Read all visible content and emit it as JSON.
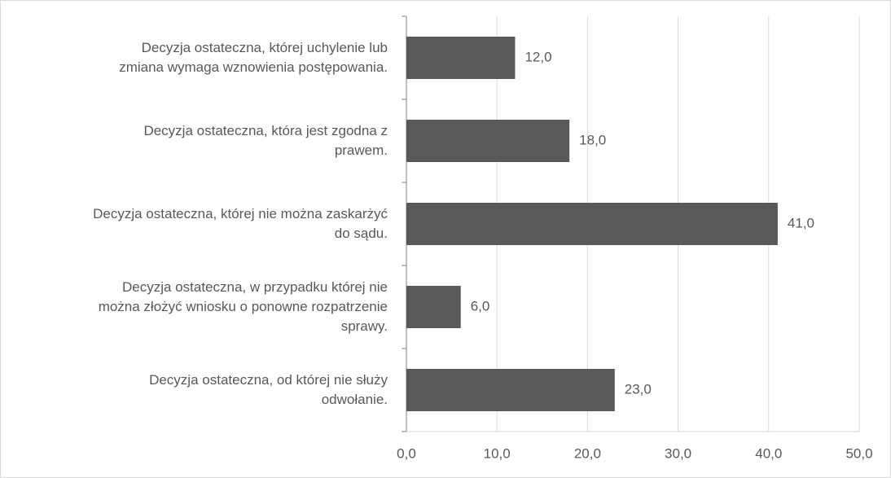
{
  "chart_data": {
    "type": "bar",
    "orientation": "horizontal",
    "categories": [
      "Decyzja ostateczna, której uchylenie lub\nzmiana wymaga wznowienia postępowania.",
      "Decyzja ostateczna, która jest zgodna z\nprawem.",
      "Decyzja ostateczna, której nie można zaskarżyć\ndo sądu.",
      "Decyzja ostateczna, w przypadku której nie\nmożna złożyć wniosku o ponowne rozpatrzenie\nsprawy.",
      "Decyzja ostateczna, od której nie służy\nodwołanie."
    ],
    "values": [
      12,
      18,
      41,
      6,
      23
    ],
    "value_labels": [
      "12,0",
      "18,0",
      "41,0",
      "6,0",
      "23,0"
    ],
    "color": "#595959",
    "xlim": [
      0,
      50
    ],
    "xticks": [
      {
        "value": 0,
        "label": "0,0"
      },
      {
        "value": 10,
        "label": "10,0"
      },
      {
        "value": 20,
        "label": "20,0"
      },
      {
        "value": 30,
        "label": "30,0"
      },
      {
        "value": 40,
        "label": "40,0"
      },
      {
        "value": 50,
        "label": "50,0"
      }
    ],
    "grid": true
  }
}
